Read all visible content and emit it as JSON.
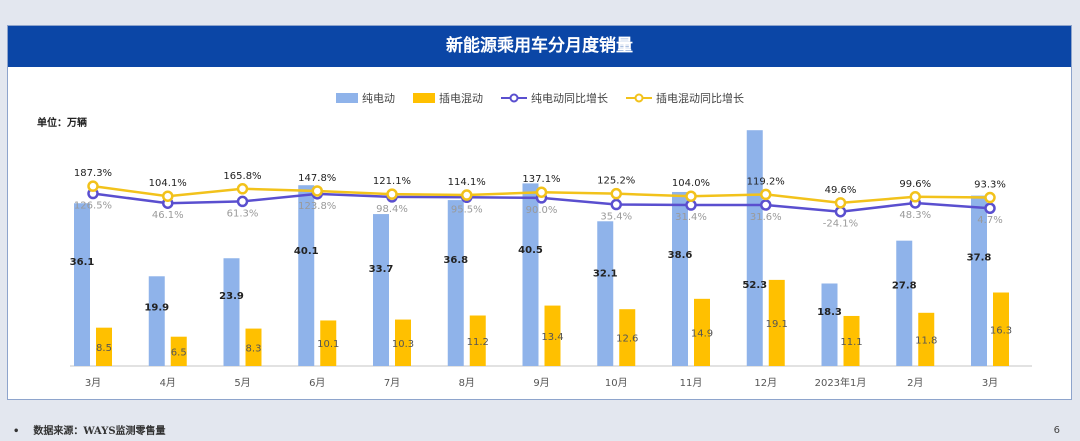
{
  "chart_data": {
    "type": "bar",
    "title": "新能源乘用车分月度销量",
    "unit_label": "单位：万辆",
    "categories": [
      "3月",
      "4月",
      "5月",
      "6月",
      "7月",
      "8月",
      "9月",
      "10月",
      "11月",
      "12月",
      "2023年1月",
      "2月",
      "3月"
    ],
    "series": [
      {
        "name": "纯电动",
        "kind": "bar",
        "axis": "primary",
        "color": "#8fb3ea",
        "values": [
          36.1,
          19.9,
          23.9,
          40.1,
          33.7,
          36.8,
          40.5,
          32.1,
          38.6,
          52.3,
          18.3,
          27.8,
          37.8
        ]
      },
      {
        "name": "插电混动",
        "kind": "bar",
        "axis": "primary",
        "color": "#ffc000",
        "values": [
          8.5,
          6.5,
          8.3,
          10.1,
          10.3,
          11.2,
          13.4,
          12.6,
          14.9,
          19.1,
          11.1,
          11.8,
          16.3
        ]
      },
      {
        "name": "纯电动同比增长",
        "kind": "line",
        "axis": "secondary",
        "color": "#5a4fcf",
        "unit": "%",
        "values": [
          126.5,
          46.1,
          61.3,
          123.8,
          98.4,
          95.5,
          90.0,
          35.4,
          31.4,
          31.6,
          -24.1,
          48.3,
          4.7
        ]
      },
      {
        "name": "插电混动同比增长",
        "kind": "line",
        "axis": "secondary",
        "color": "#f2c21b",
        "unit": "%",
        "values": [
          187.3,
          104.1,
          165.8,
          147.8,
          121.1,
          114.1,
          137.1,
          125.2,
          104.0,
          119.2,
          49.6,
          99.6,
          93.3
        ]
      }
    ],
    "ylim": [
      0,
      59
    ],
    "y2lim": [
      -1300,
      900
    ],
    "grid": false,
    "legend": "top-center"
  },
  "footer": {
    "source": "数据来源：WAYS监测零售量",
    "bullet": "•",
    "page": "6"
  }
}
